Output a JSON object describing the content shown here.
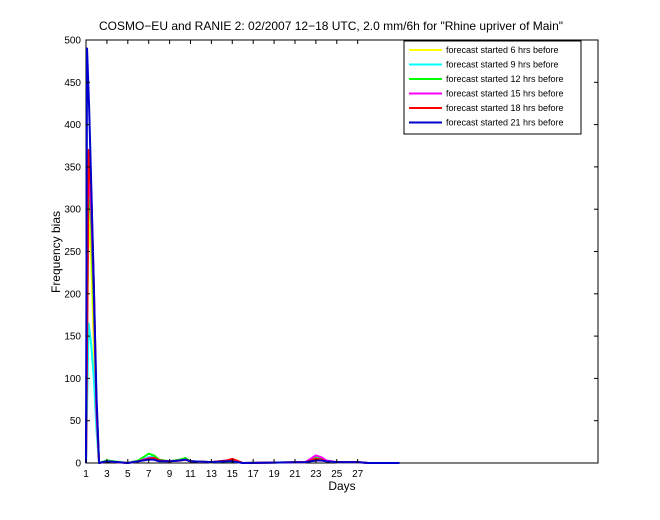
{
  "chart_data": {
    "type": "line",
    "title": "COSMO−EU and RANIE 2: 02/2007 12−18 UTC, 2.0 mm/6h for \"Rhine upriver of Main\"",
    "xlabel": "Days",
    "ylabel": "Frequency bias",
    "xlim": [
      1,
      50
    ],
    "ylim": [
      0,
      500
    ],
    "xticks": [
      1,
      3,
      5,
      7,
      9,
      11,
      13,
      15,
      17,
      19,
      21,
      23,
      25,
      27
    ],
    "yticks": [
      0,
      50,
      100,
      150,
      200,
      250,
      300,
      350,
      400,
      450,
      500
    ],
    "grid": false,
    "legend_position": "top-right",
    "series": [
      {
        "name": "forecast started 6 hrs before",
        "color": "#ffff00",
        "points": [
          [
            1,
            0
          ],
          [
            1.25,
            300
          ],
          [
            1.5,
            240
          ],
          [
            1.75,
            140
          ],
          [
            2,
            40
          ],
          [
            2.25,
            0
          ],
          [
            3,
            2
          ],
          [
            5,
            0
          ],
          [
            6,
            2
          ],
          [
            7,
            6
          ],
          [
            7.5,
            7
          ],
          [
            8,
            3
          ],
          [
            9,
            2
          ],
          [
            10,
            4
          ],
          [
            10.5,
            4
          ],
          [
            11,
            2
          ],
          [
            13,
            1
          ],
          [
            14.5,
            2
          ],
          [
            15,
            2
          ],
          [
            16,
            0
          ],
          [
            22,
            1
          ],
          [
            22.5,
            3
          ],
          [
            23,
            6
          ],
          [
            23.5,
            5
          ],
          [
            24,
            2
          ],
          [
            25,
            1
          ],
          [
            27,
            1
          ],
          [
            28,
            0
          ],
          [
            31,
            0
          ]
        ]
      },
      {
        "name": "forecast started 9 hrs before",
        "color": "#00ffff",
        "points": [
          [
            1,
            0
          ],
          [
            1.25,
            165
          ],
          [
            1.5,
            140
          ],
          [
            1.75,
            100
          ],
          [
            2,
            40
          ],
          [
            2.25,
            0
          ],
          [
            3,
            3
          ],
          [
            5,
            0
          ],
          [
            6,
            2
          ],
          [
            7,
            7
          ],
          [
            7.5,
            8
          ],
          [
            8,
            3
          ],
          [
            9,
            2
          ],
          [
            10,
            4
          ],
          [
            10.5,
            5
          ],
          [
            11,
            2
          ],
          [
            13,
            1
          ],
          [
            14.5,
            2
          ],
          [
            15,
            2
          ],
          [
            16,
            0
          ],
          [
            22,
            1
          ],
          [
            22.5,
            3
          ],
          [
            23,
            6
          ],
          [
            23.5,
            5
          ],
          [
            24,
            2
          ],
          [
            25,
            1
          ],
          [
            27,
            1
          ],
          [
            28,
            0
          ],
          [
            31,
            0
          ]
        ]
      },
      {
        "name": "forecast started 12 hrs before",
        "color": "#00ff00",
        "points": [
          [
            1,
            0
          ],
          [
            1.25,
            345
          ],
          [
            1.5,
            280
          ],
          [
            1.75,
            180
          ],
          [
            2,
            70
          ],
          [
            2.25,
            0
          ],
          [
            3,
            3
          ],
          [
            5,
            0
          ],
          [
            6,
            3
          ],
          [
            7,
            11
          ],
          [
            7.5,
            9
          ],
          [
            8,
            4
          ],
          [
            9,
            2
          ],
          [
            10,
            4
          ],
          [
            10.5,
            6
          ],
          [
            11,
            2
          ],
          [
            13,
            1
          ],
          [
            14.5,
            3
          ],
          [
            15,
            3
          ],
          [
            16,
            0
          ],
          [
            22,
            1
          ],
          [
            22.5,
            4
          ],
          [
            23,
            7
          ],
          [
            23.5,
            5
          ],
          [
            24,
            2
          ],
          [
            25,
            1
          ],
          [
            27,
            1
          ],
          [
            28,
            0
          ],
          [
            31,
            0
          ]
        ]
      },
      {
        "name": "forecast started 15 hrs before",
        "color": "#ff00ff",
        "points": [
          [
            1,
            0
          ],
          [
            1.25,
            360
          ],
          [
            1.5,
            300
          ],
          [
            1.75,
            200
          ],
          [
            2,
            60
          ],
          [
            2.25,
            0
          ],
          [
            3,
            2
          ],
          [
            5,
            0
          ],
          [
            6,
            2
          ],
          [
            7,
            6
          ],
          [
            7.5,
            6
          ],
          [
            8,
            3
          ],
          [
            9,
            2
          ],
          [
            10,
            3
          ],
          [
            10.5,
            4
          ],
          [
            11,
            2
          ],
          [
            13,
            1
          ],
          [
            14.5,
            3
          ],
          [
            15,
            4
          ],
          [
            16,
            0
          ],
          [
            22,
            1
          ],
          [
            22.5,
            5
          ],
          [
            23,
            9
          ],
          [
            23.5,
            7
          ],
          [
            24,
            3
          ],
          [
            25,
            1
          ],
          [
            27,
            1
          ],
          [
            28,
            0
          ],
          [
            31,
            0
          ]
        ]
      },
      {
        "name": "forecast started 18 hrs before",
        "color": "#ff0000",
        "points": [
          [
            1,
            0
          ],
          [
            1.25,
            370
          ],
          [
            1.5,
            320
          ],
          [
            1.75,
            210
          ],
          [
            2,
            70
          ],
          [
            2.25,
            0
          ],
          [
            3,
            2
          ],
          [
            5,
            0
          ],
          [
            6,
            2
          ],
          [
            7,
            5
          ],
          [
            7.5,
            6
          ],
          [
            8,
            3
          ],
          [
            9,
            2
          ],
          [
            10,
            3
          ],
          [
            10.5,
            4
          ],
          [
            11,
            2
          ],
          [
            13,
            1
          ],
          [
            14.5,
            3
          ],
          [
            15,
            5
          ],
          [
            16,
            0
          ],
          [
            22,
            1
          ],
          [
            22.5,
            3
          ],
          [
            23,
            5
          ],
          [
            23.5,
            4
          ],
          [
            24,
            2
          ],
          [
            25,
            1
          ],
          [
            27,
            1
          ],
          [
            28,
            0
          ],
          [
            31,
            0
          ]
        ]
      },
      {
        "name": "forecast started 21 hrs before",
        "color": "#0000cc",
        "points": [
          [
            1,
            0
          ],
          [
            1.1,
            490
          ],
          [
            1.3,
            420
          ],
          [
            1.5,
            330
          ],
          [
            1.75,
            210
          ],
          [
            2,
            80
          ],
          [
            2.25,
            0
          ],
          [
            3,
            2
          ],
          [
            5,
            0
          ],
          [
            6,
            2
          ],
          [
            7,
            4
          ],
          [
            7.5,
            4
          ],
          [
            8,
            2
          ],
          [
            9,
            2
          ],
          [
            10,
            3
          ],
          [
            10.5,
            4
          ],
          [
            11,
            2
          ],
          [
            13,
            1
          ],
          [
            14.5,
            2
          ],
          [
            15,
            2
          ],
          [
            16,
            0
          ],
          [
            22,
            1
          ],
          [
            22.5,
            2
          ],
          [
            23,
            3
          ],
          [
            23.5,
            3
          ],
          [
            24,
            2
          ],
          [
            25,
            1
          ],
          [
            27,
            1
          ],
          [
            28,
            0
          ],
          [
            31,
            0
          ]
        ]
      }
    ]
  }
}
